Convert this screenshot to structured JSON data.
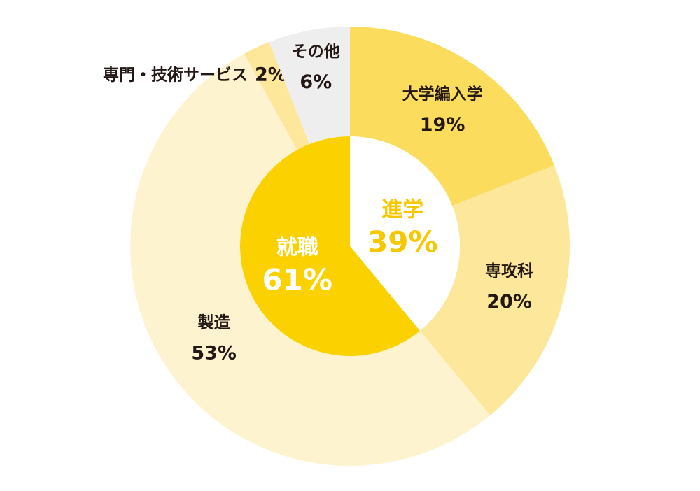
{
  "chart_data": {
    "type": "sunburst",
    "inner": {
      "categories": [
        "進学",
        "就職"
      ],
      "values": [
        39,
        61
      ],
      "value_labels": [
        "39%",
        "61%"
      ],
      "colors": [
        "#ffffff",
        "#fbd100"
      ],
      "label_colors": [
        "#f7c800",
        "#ffffff"
      ]
    },
    "outer": {
      "categories": [
        "大学編入学",
        "専攻科",
        "製造",
        "専門・技術サービス",
        "その他"
      ],
      "values": [
        19,
        20,
        53,
        2,
        6
      ],
      "value_labels": [
        "19%",
        "20%",
        "53%",
        "2%",
        "6%"
      ],
      "colors": [
        "#fcdc5c",
        "#fde79a",
        "#fef3cf",
        "#fde79a",
        "#eeeeee"
      ]
    }
  }
}
